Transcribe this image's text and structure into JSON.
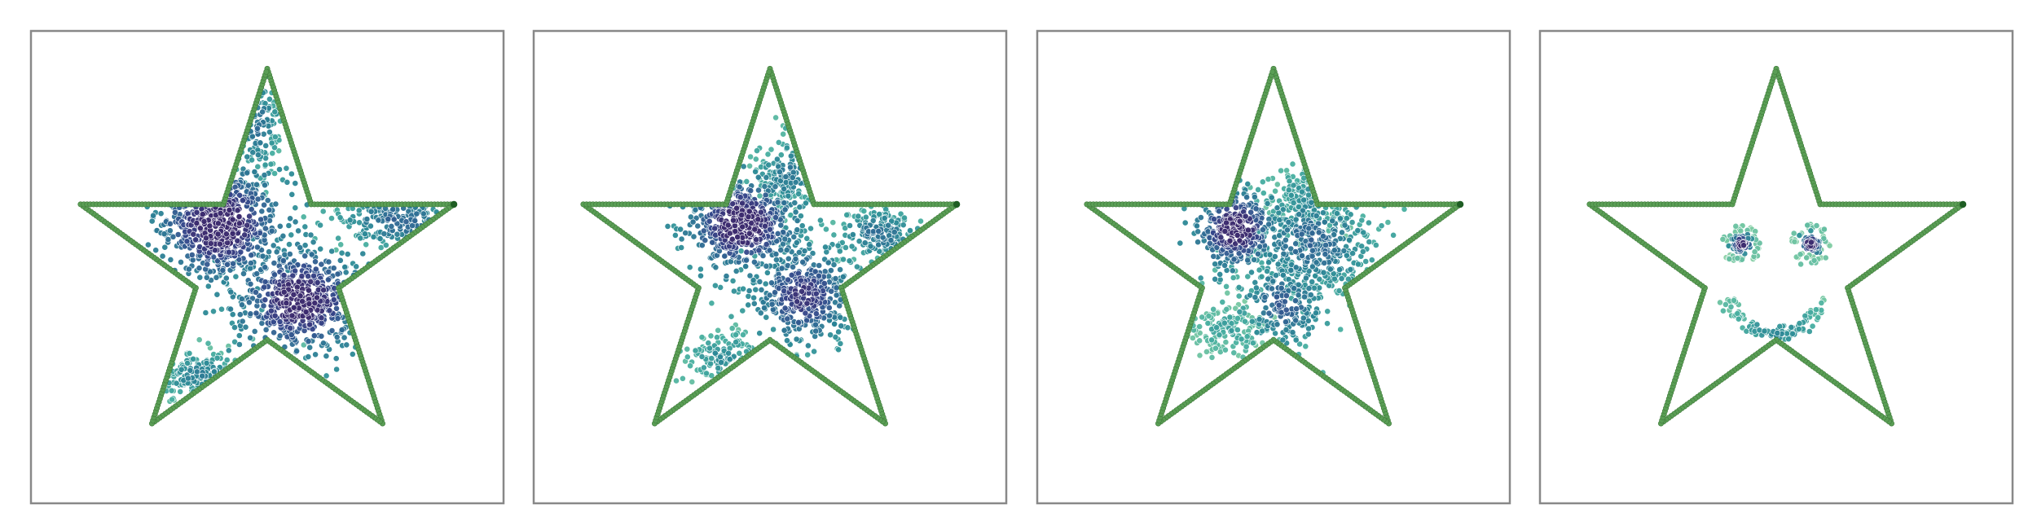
{
  "chart_data": [
    {
      "type": "scatter",
      "title": "",
      "xlabel": "",
      "ylabel": "",
      "axes_visible": false,
      "grid": false,
      "xlim": [
        0,
        1
      ],
      "ylim": [
        0,
        1
      ],
      "boundary": {
        "shape": "star",
        "color": "#5a9e55",
        "endpoint_color": "#1e5d23",
        "vertices": [
          [
            0.5,
            0.92
          ],
          [
            0.593,
            0.633
          ],
          [
            0.895,
            0.633
          ],
          [
            0.651,
            0.456
          ],
          [
            0.744,
            0.169
          ],
          [
            0.5,
            0.346
          ],
          [
            0.256,
            0.169
          ],
          [
            0.349,
            0.456
          ],
          [
            0.105,
            0.633
          ],
          [
            0.407,
            0.633
          ]
        ]
      },
      "colormap": [
        "#c3e6b2",
        "#7ccba2",
        "#46aea0",
        "#2b8896",
        "#2e6a93",
        "#35468a",
        "#3b2a6e"
      ],
      "clusters": [
        {
          "center": [
            0.4,
            0.59
          ],
          "spread": [
            0.065,
            0.06
          ],
          "count": 600,
          "density": 1.0
        },
        {
          "center": [
            0.57,
            0.43
          ],
          "spread": [
            0.07,
            0.06
          ],
          "count": 550,
          "density": 0.95
        },
        {
          "center": [
            0.48,
            0.8
          ],
          "spread": [
            0.025,
            0.06
          ],
          "count": 120,
          "density": 0.5
        },
        {
          "center": [
            0.78,
            0.6
          ],
          "spread": [
            0.07,
            0.035
          ],
          "count": 180,
          "density": 0.55
        },
        {
          "center": [
            0.36,
            0.27
          ],
          "spread": [
            0.06,
            0.03
          ],
          "count": 140,
          "density": 0.4
        }
      ]
    },
    {
      "type": "scatter",
      "title": "",
      "xlabel": "",
      "ylabel": "",
      "axes_visible": false,
      "grid": false,
      "xlim": [
        0,
        1
      ],
      "ylim": [
        0,
        1
      ],
      "boundary": {
        "shape": "star",
        "color": "#5a9e55",
        "endpoint_color": "#1e5d23",
        "vertices": [
          [
            0.5,
            0.92
          ],
          [
            0.593,
            0.633
          ],
          [
            0.895,
            0.633
          ],
          [
            0.651,
            0.456
          ],
          [
            0.744,
            0.169
          ],
          [
            0.5,
            0.346
          ],
          [
            0.256,
            0.169
          ],
          [
            0.349,
            0.456
          ],
          [
            0.105,
            0.633
          ],
          [
            0.407,
            0.633
          ]
        ]
      },
      "colormap": [
        "#c3e6b2",
        "#7ccba2",
        "#46aea0",
        "#2b8896",
        "#2e6a93",
        "#35468a",
        "#3b2a6e"
      ],
      "clusters": [
        {
          "center": [
            0.44,
            0.59
          ],
          "spread": [
            0.055,
            0.05
          ],
          "count": 500,
          "density": 1.0
        },
        {
          "center": [
            0.57,
            0.44
          ],
          "spread": [
            0.055,
            0.055
          ],
          "count": 420,
          "density": 0.8
        },
        {
          "center": [
            0.54,
            0.7
          ],
          "spread": [
            0.04,
            0.04
          ],
          "count": 160,
          "density": 0.45
        },
        {
          "center": [
            0.73,
            0.57
          ],
          "spread": [
            0.05,
            0.03
          ],
          "count": 170,
          "density": 0.5
        },
        {
          "center": [
            0.4,
            0.31
          ],
          "spread": [
            0.045,
            0.03
          ],
          "count": 110,
          "density": 0.35
        }
      ]
    },
    {
      "type": "scatter",
      "title": "",
      "xlabel": "",
      "ylabel": "",
      "axes_visible": false,
      "grid": false,
      "xlim": [
        0,
        1
      ],
      "ylim": [
        0,
        1
      ],
      "boundary": {
        "shape": "star",
        "color": "#5a9e55",
        "endpoint_color": "#1e5d23",
        "vertices": [
          [
            0.5,
            0.92
          ],
          [
            0.593,
            0.633
          ],
          [
            0.895,
            0.633
          ],
          [
            0.651,
            0.456
          ],
          [
            0.744,
            0.169
          ],
          [
            0.5,
            0.346
          ],
          [
            0.256,
            0.169
          ],
          [
            0.349,
            0.456
          ],
          [
            0.105,
            0.633
          ],
          [
            0.407,
            0.633
          ]
        ]
      },
      "colormap": [
        "#c3e6b2",
        "#7ccba2",
        "#46aea0",
        "#2b8896",
        "#2e6a93",
        "#35468a",
        "#3b2a6e"
      ],
      "clusters": [
        {
          "center": [
            0.42,
            0.58
          ],
          "spread": [
            0.04,
            0.04
          ],
          "count": 300,
          "density": 1.0
        },
        {
          "center": [
            0.58,
            0.55
          ],
          "spread": [
            0.07,
            0.06
          ],
          "count": 420,
          "density": 0.55
        },
        {
          "center": [
            0.52,
            0.42
          ],
          "spread": [
            0.05,
            0.05
          ],
          "count": 220,
          "density": 0.6
        },
        {
          "center": [
            0.57,
            0.64
          ],
          "spread": [
            0.04,
            0.04
          ],
          "count": 160,
          "density": 0.35
        },
        {
          "center": [
            0.4,
            0.37
          ],
          "spread": [
            0.04,
            0.03
          ],
          "count": 140,
          "density": 0.25
        }
      ]
    },
    {
      "type": "scatter",
      "title": "",
      "xlabel": "",
      "ylabel": "",
      "axes_visible": false,
      "grid": false,
      "xlim": [
        0,
        1
      ],
      "ylim": [
        0,
        1
      ],
      "boundary": {
        "shape": "star",
        "color": "#5a9e55",
        "endpoint_color": "#1e5d23",
        "vertices": [
          [
            0.5,
            0.92
          ],
          [
            0.593,
            0.633
          ],
          [
            0.895,
            0.633
          ],
          [
            0.651,
            0.456
          ],
          [
            0.744,
            0.169
          ],
          [
            0.5,
            0.346
          ],
          [
            0.256,
            0.169
          ],
          [
            0.349,
            0.456
          ],
          [
            0.105,
            0.633
          ],
          [
            0.407,
            0.633
          ]
        ]
      },
      "colormap": [
        "#c3e6b2",
        "#7ccba2",
        "#46aea0",
        "#2b8896",
        "#2e6a93",
        "#35468a",
        "#3b2a6e"
      ],
      "clusters": [
        {
          "center": [
            0.427,
            0.549
          ],
          "spread": [
            0.01,
            0.01
          ],
          "count": 55,
          "density": 1.0
        },
        {
          "center": [
            0.427,
            0.549
          ],
          "ring_radius": 0.035,
          "count": 45,
          "density": 0.2
        },
        {
          "center": [
            0.573,
            0.549
          ],
          "spread": [
            0.01,
            0.01
          ],
          "count": 55,
          "density": 1.0
        },
        {
          "center": [
            0.573,
            0.549
          ],
          "ring_radius": 0.035,
          "count": 45,
          "density": 0.2
        },
        {
          "center": [
            0.5,
            0.47
          ],
          "arc": {
            "radius": 0.11,
            "from_deg": 200,
            "to_deg": 340
          },
          "count": 110,
          "density": 0.35
        }
      ]
    }
  ]
}
